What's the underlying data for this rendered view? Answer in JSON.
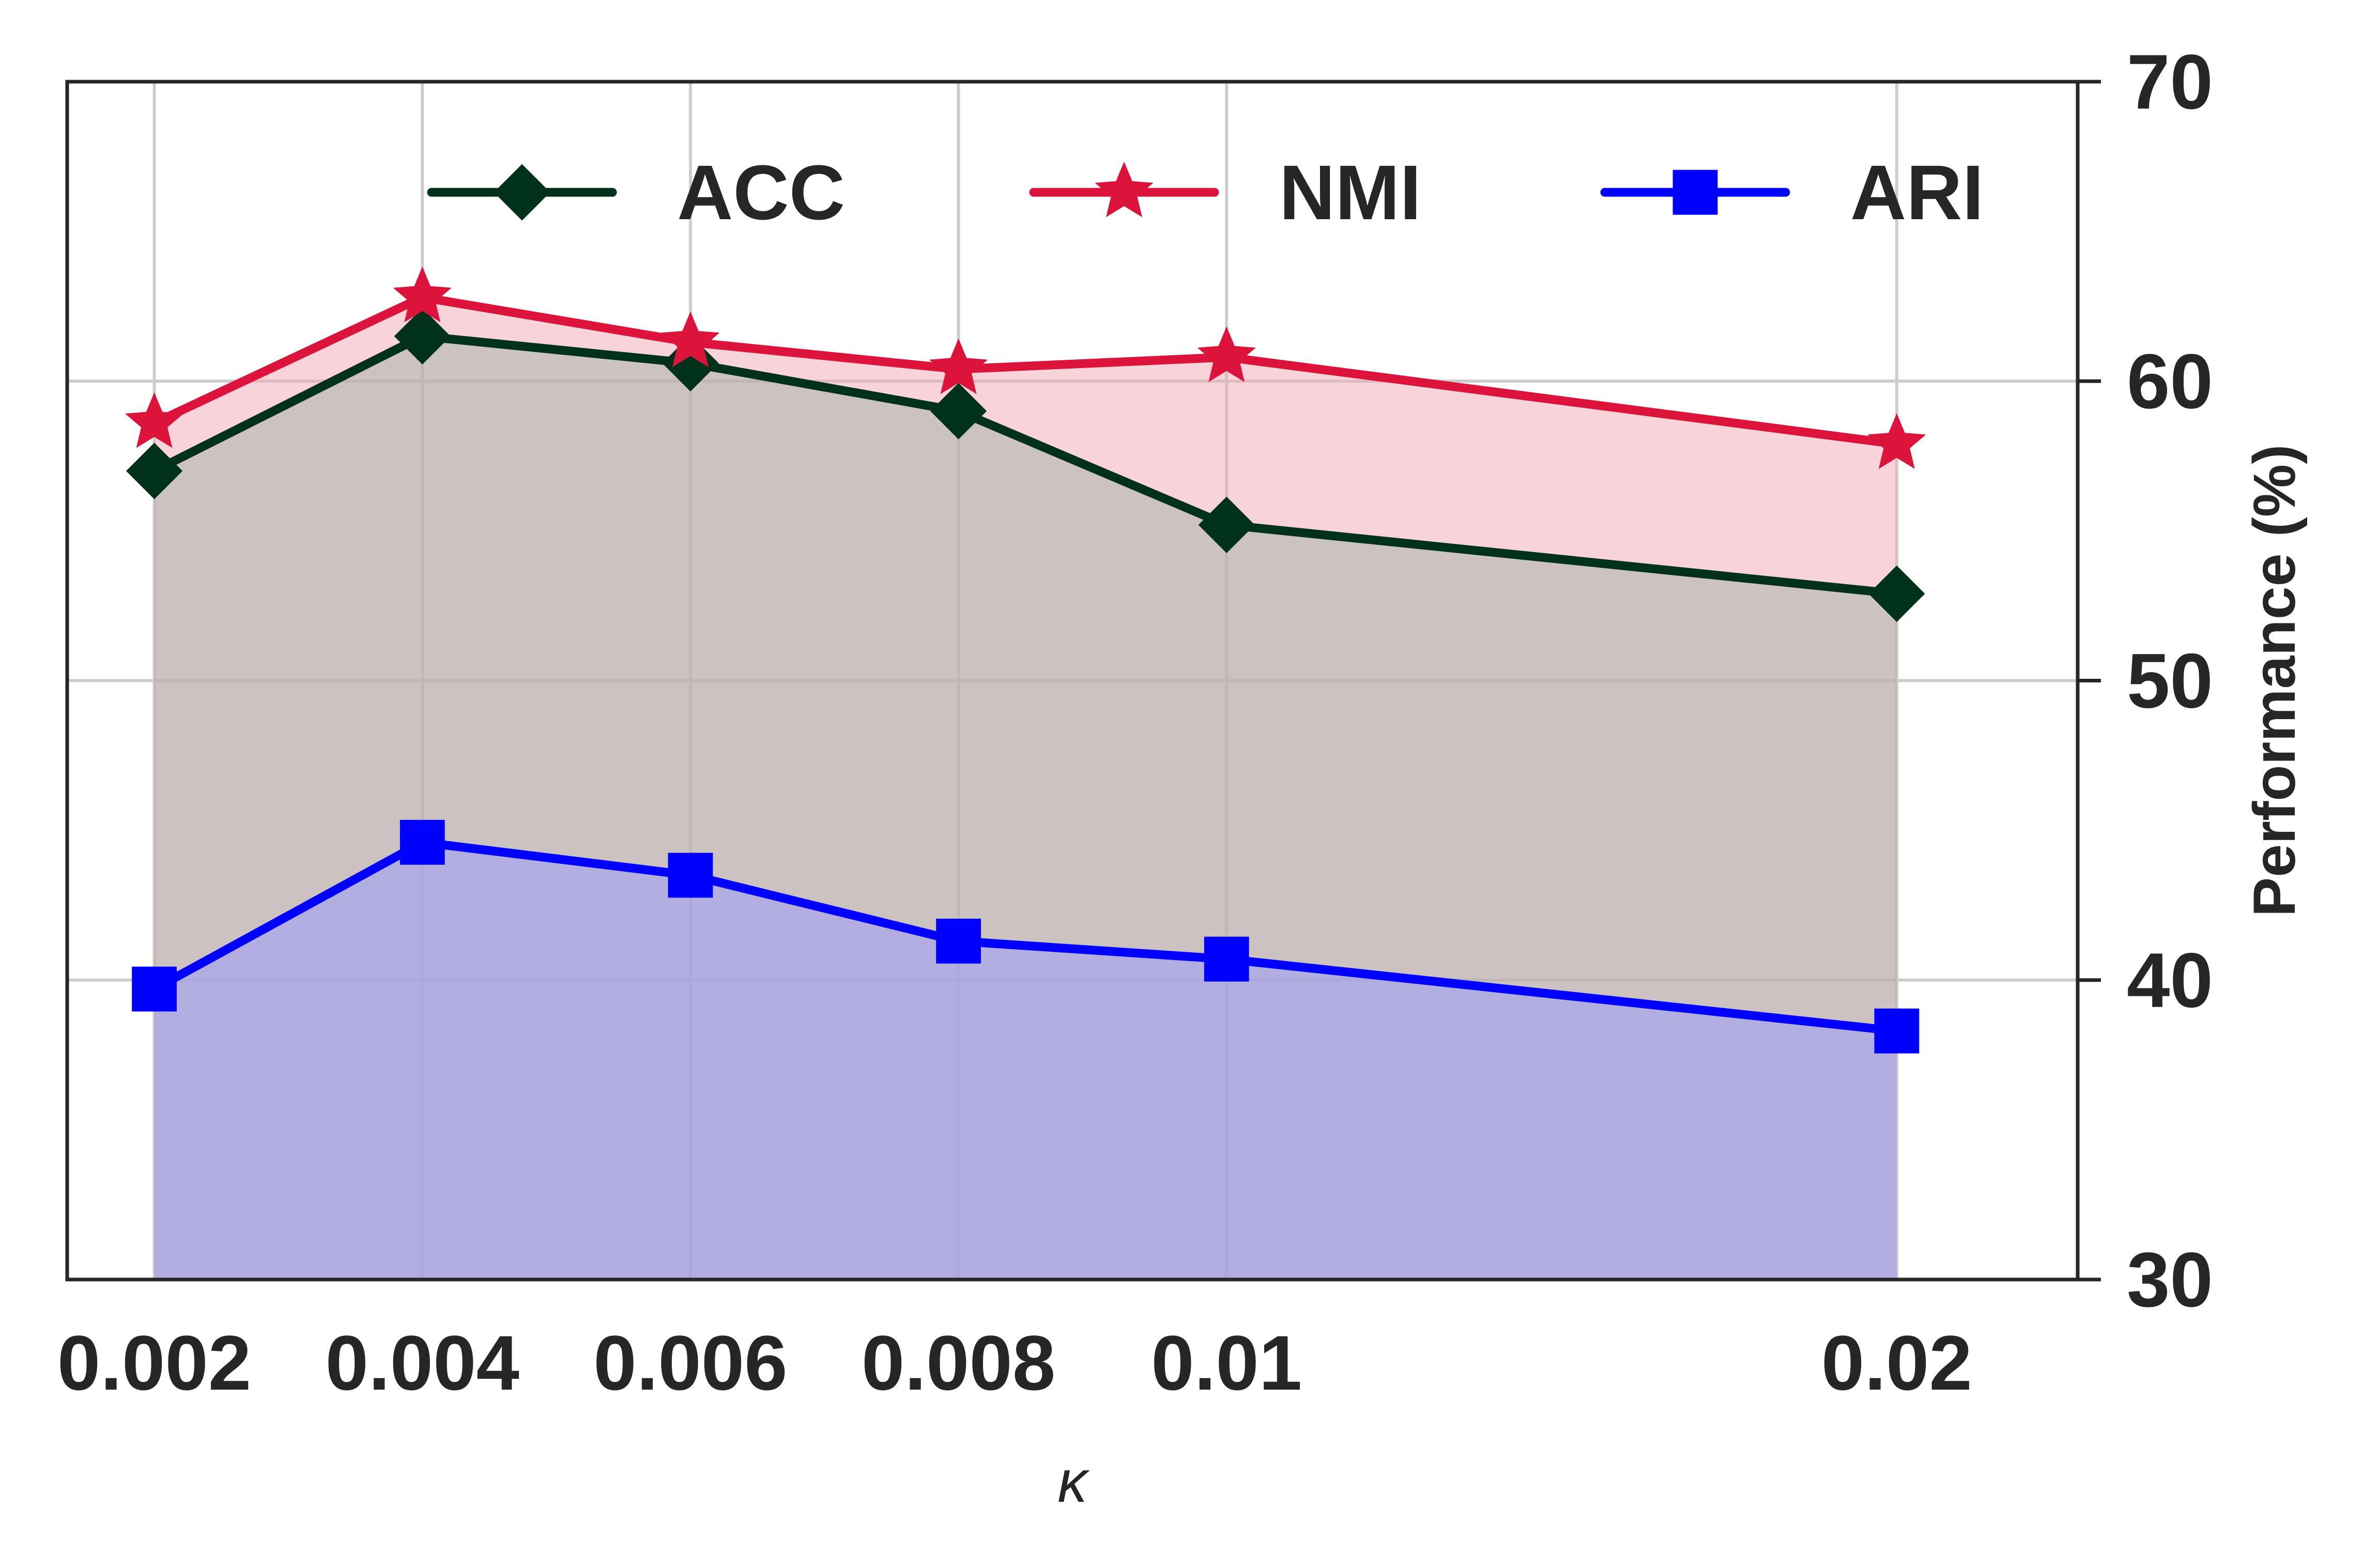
{
  "chart_data": {
    "type": "line",
    "xlabel": "κ",
    "ylabel": "Performance (%)",
    "ylim": [
      30,
      70
    ],
    "yticks": [
      30,
      40,
      50,
      60,
      70
    ],
    "y_axis_side": "right",
    "grid": true,
    "legend_placement": "top",
    "categories": [
      "0.002",
      "0.004",
      "0.006",
      "0.008",
      "0.01",
      "0.02"
    ],
    "x": [
      0.002,
      0.004,
      0.006,
      0.008,
      0.01,
      0.015
    ],
    "fill_below": true,
    "series": [
      {
        "name": "ACC",
        "marker": "diamond",
        "color": "#00311a",
        "fill_color": "#9fb1ab",
        "values": [
          57.0,
          61.5,
          60.6,
          59.0,
          55.2,
          52.9
        ]
      },
      {
        "name": "NMI",
        "marker": "star",
        "color": "#dc143c",
        "fill_color": "#f2a7b4",
        "values": [
          58.6,
          62.8,
          61.3,
          60.4,
          60.8,
          57.9
        ]
      },
      {
        "name": "ARI",
        "marker": "square",
        "color": "#0000ff",
        "fill_color": "#9999ff",
        "values": [
          39.7,
          44.6,
          43.5,
          41.3,
          40.7,
          38.3
        ]
      }
    ]
  }
}
